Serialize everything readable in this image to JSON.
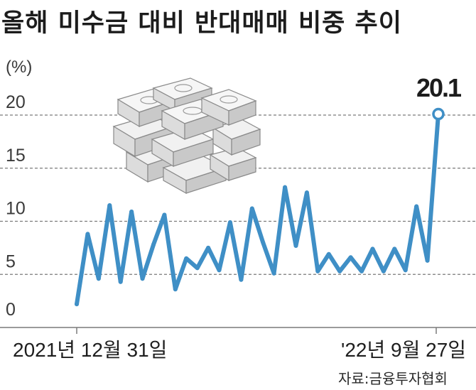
{
  "title": "올해 미수금 대비 반대매매 비중 추이",
  "unit_label": "(%)",
  "source": "자료:금융투자협회",
  "colors": {
    "line": "#3f8fc6",
    "marker_fill": "#ffffff",
    "text": "#1e1e1e",
    "grid": "#7a7a7a"
  },
  "illustration": "stack-of-banknotes",
  "chart_data": {
    "type": "line",
    "ylim": [
      0,
      20
    ],
    "yticks": [
      "0",
      "5",
      "10",
      "15",
      "20"
    ],
    "grid": "dashed horizontal",
    "x_start_label": "2021년 12월 31일",
    "x_end_label": "'22년 9월 27일",
    "series": [
      {
        "values": [
          2.2,
          8.8,
          4.6,
          11.5,
          4.3,
          10.9,
          4.6,
          7.8,
          10.6,
          3.6,
          6.5,
          5.6,
          7.5,
          5.4,
          9.9,
          4.5,
          11.2,
          8.0,
          5.1,
          13.2,
          7.7,
          12.7,
          5.3,
          6.9,
          5.3,
          6.6,
          5.3,
          7.4,
          5.3,
          7.4,
          5.4,
          11.4,
          6.3,
          20.1
        ]
      }
    ],
    "last_value_label": "20.1"
  }
}
